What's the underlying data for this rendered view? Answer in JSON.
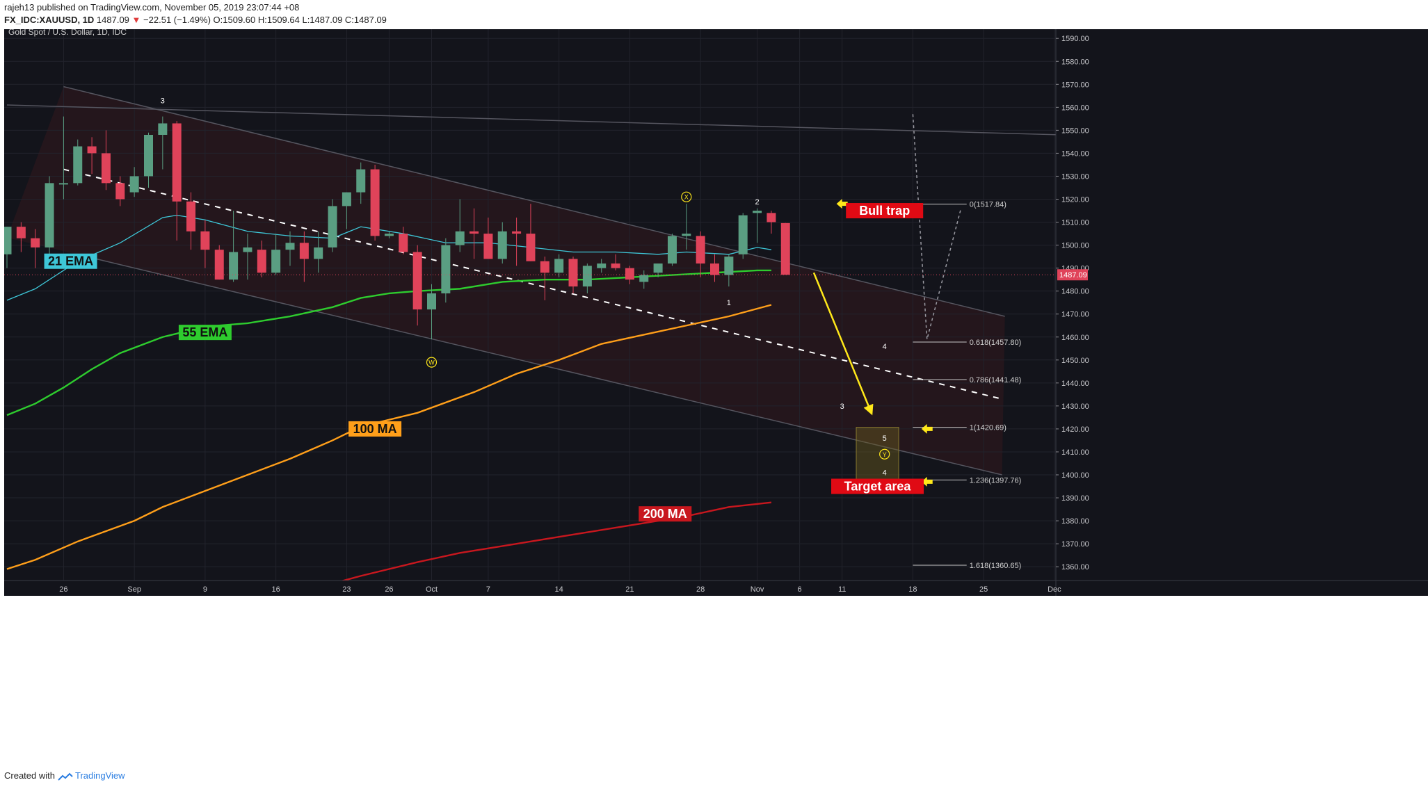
{
  "header": {
    "author": "rajeh13",
    "published_text": "published on TradingView.com, November 05, 2019 23:07:44 +08",
    "symbol": "FX_IDC:XAUUSD, 1D",
    "last": "1487.09",
    "change": "−22.51 (−1.49%)",
    "ohlc": "O:1509.60 H:1509.64 L:1487.09 C:1487.09"
  },
  "footer": {
    "created_with": "Created with",
    "brand": "TradingView"
  },
  "colors": {
    "background": "#13141b",
    "up": "#5a9e82",
    "down": "#e0435a",
    "ema21": "#3ec7d8",
    "ema55": "#2ecc2e",
    "ma100": "#ff9f1a",
    "ma200": "#c8171e",
    "annotation": "#ffe81a",
    "label_red": "#e00a14"
  },
  "chart_data": {
    "type": "candlestick",
    "title": "Gold Spot / U.S. Dollar, 1D, IDC",
    "yaxis": {
      "range": [
        1354,
        1594
      ],
      "ticks": [
        1360,
        1370,
        1380,
        1390,
        1400,
        1410,
        1420,
        1430,
        1440,
        1450,
        1460,
        1470,
        1480,
        1490,
        1500,
        1510,
        1520,
        1530,
        1540,
        1550,
        1560,
        1570,
        1580,
        1590
      ],
      "last_price_label": "1487.09"
    },
    "xaxis": {
      "ticks": [
        {
          "day": 4,
          "label": "26"
        },
        {
          "day": 9,
          "label": "Sep"
        },
        {
          "day": 14,
          "label": "9"
        },
        {
          "day": 19,
          "label": "16"
        },
        {
          "day": 24,
          "label": "23"
        },
        {
          "day": 27,
          "label": "26"
        },
        {
          "day": 30,
          "label": "Oct"
        },
        {
          "day": 34,
          "label": "7"
        },
        {
          "day": 39,
          "label": "14"
        },
        {
          "day": 44,
          "label": "21"
        },
        {
          "day": 49,
          "label": "28"
        },
        {
          "day": 53,
          "label": "Nov"
        },
        {
          "day": 56,
          "label": "6"
        },
        {
          "day": 59,
          "label": "11"
        },
        {
          "day": 64,
          "label": "18"
        },
        {
          "day": 69,
          "label": "25"
        },
        {
          "day": 74,
          "label": "Dec"
        }
      ]
    },
    "candles": [
      {
        "o": 1496,
        "h": 1508,
        "l": 1490,
        "c": 1508
      },
      {
        "o": 1508,
        "h": 1510,
        "l": 1497,
        "c": 1503
      },
      {
        "o": 1503,
        "h": 1507,
        "l": 1490,
        "c": 1499
      },
      {
        "o": 1499,
        "h": 1530,
        "l": 1495,
        "c": 1527
      },
      {
        "o": 1527,
        "h": 1556,
        "l": 1520,
        "c": 1527
      },
      {
        "o": 1527,
        "h": 1546,
        "l": 1526,
        "c": 1543
      },
      {
        "o": 1543,
        "h": 1547,
        "l": 1531,
        "c": 1540
      },
      {
        "o": 1540,
        "h": 1550,
        "l": 1524,
        "c": 1527
      },
      {
        "o": 1527,
        "h": 1530,
        "l": 1517,
        "c": 1520
      },
      {
        "o": 1523,
        "h": 1534,
        "l": 1521,
        "c": 1530
      },
      {
        "o": 1530,
        "h": 1549,
        "l": 1525,
        "c": 1548
      },
      {
        "o": 1548,
        "h": 1556,
        "l": 1533,
        "c": 1553
      },
      {
        "o": 1553,
        "h": 1554,
        "l": 1502,
        "c": 1519
      },
      {
        "o": 1519,
        "h": 1523,
        "l": 1498,
        "c": 1506
      },
      {
        "o": 1506,
        "h": 1511,
        "l": 1490,
        "c": 1498
      },
      {
        "o": 1498,
        "h": 1500,
        "l": 1485,
        "c": 1485
      },
      {
        "o": 1485,
        "h": 1515,
        "l": 1484,
        "c": 1497
      },
      {
        "o": 1497,
        "h": 1505,
        "l": 1485,
        "c": 1499
      },
      {
        "o": 1498,
        "h": 1502,
        "l": 1486,
        "c": 1488
      },
      {
        "o": 1488,
        "h": 1505,
        "l": 1487,
        "c": 1498
      },
      {
        "o": 1498,
        "h": 1506,
        "l": 1491,
        "c": 1501
      },
      {
        "o": 1501,
        "h": 1506,
        "l": 1484,
        "c": 1494
      },
      {
        "o": 1494,
        "h": 1506,
        "l": 1488,
        "c": 1499
      },
      {
        "o": 1499,
        "h": 1520,
        "l": 1497,
        "c": 1517
      },
      {
        "o": 1517,
        "h": 1523,
        "l": 1507,
        "c": 1523
      },
      {
        "o": 1523,
        "h": 1536,
        "l": 1518,
        "c": 1533
      },
      {
        "o": 1533,
        "h": 1535,
        "l": 1502,
        "c": 1504
      },
      {
        "o": 1504,
        "h": 1506,
        "l": 1503,
        "c": 1505
      },
      {
        "o": 1505,
        "h": 1508,
        "l": 1496,
        "c": 1497
      },
      {
        "o": 1497,
        "h": 1500,
        "l": 1465,
        "c": 1472
      },
      {
        "o": 1472,
        "h": 1483,
        "l": 1459,
        "c": 1479
      },
      {
        "o": 1479,
        "h": 1503,
        "l": 1475,
        "c": 1500
      },
      {
        "o": 1500,
        "h": 1520,
        "l": 1497,
        "c": 1506
      },
      {
        "o": 1506,
        "h": 1516,
        "l": 1494,
        "c": 1505
      },
      {
        "o": 1505,
        "h": 1512,
        "l": 1494,
        "c": 1494
      },
      {
        "o": 1494,
        "h": 1510,
        "l": 1492,
        "c": 1506
      },
      {
        "o": 1506,
        "h": 1512,
        "l": 1491,
        "c": 1505
      },
      {
        "o": 1505,
        "h": 1518,
        "l": 1493,
        "c": 1493
      },
      {
        "o": 1493,
        "h": 1495,
        "l": 1476,
        "c": 1488
      },
      {
        "o": 1488,
        "h": 1496,
        "l": 1486,
        "c": 1494
      },
      {
        "o": 1494,
        "h": 1495,
        "l": 1479,
        "c": 1482
      },
      {
        "o": 1482,
        "h": 1492,
        "l": 1479,
        "c": 1491
      },
      {
        "o": 1490,
        "h": 1494,
        "l": 1488,
        "c": 1492
      },
      {
        "o": 1492,
        "h": 1496,
        "l": 1489,
        "c": 1490
      },
      {
        "o": 1490,
        "h": 1491,
        "l": 1483,
        "c": 1485
      },
      {
        "o": 1484,
        "h": 1489,
        "l": 1481,
        "c": 1487
      },
      {
        "o": 1488,
        "h": 1492,
        "l": 1486,
        "c": 1492
      },
      {
        "o": 1492,
        "h": 1505,
        "l": 1491,
        "c": 1504
      },
      {
        "o": 1504,
        "h": 1518,
        "l": 1498,
        "c": 1505
      },
      {
        "o": 1504,
        "h": 1506,
        "l": 1486,
        "c": 1492
      },
      {
        "o": 1492,
        "h": 1496,
        "l": 1484,
        "c": 1487
      },
      {
        "o": 1487,
        "h": 1496,
        "l": 1482,
        "c": 1495
      },
      {
        "o": 1496,
        "h": 1514,
        "l": 1494,
        "c": 1513
      },
      {
        "o": 1514,
        "h": 1516,
        "l": 1501,
        "c": 1515
      },
      {
        "o": 1514,
        "h": 1515,
        "l": 1505,
        "c": 1510
      },
      {
        "o": 1509.6,
        "h": 1509.64,
        "l": 1487.09,
        "c": 1487.09
      }
    ],
    "series": [
      {
        "name": "21 EMA",
        "points": [
          [
            0,
            1476
          ],
          [
            2,
            1481
          ],
          [
            5,
            1493
          ],
          [
            8,
            1501
          ],
          [
            11,
            1512
          ],
          [
            12,
            1513
          ],
          [
            14,
            1511
          ],
          [
            17,
            1506
          ],
          [
            20,
            1504
          ],
          [
            23,
            1503
          ],
          [
            25,
            1508
          ],
          [
            28,
            1505
          ],
          [
            31,
            1501
          ],
          [
            34,
            1501
          ],
          [
            37,
            1499
          ],
          [
            40,
            1497
          ],
          [
            43,
            1497
          ],
          [
            46,
            1496
          ],
          [
            48,
            1497
          ],
          [
            51,
            1496
          ],
          [
            53,
            1499
          ],
          [
            54,
            1498
          ]
        ]
      },
      {
        "name": "55 EMA",
        "points": [
          [
            0,
            1426
          ],
          [
            2,
            1431
          ],
          [
            4,
            1438
          ],
          [
            6,
            1446
          ],
          [
            8,
            1453
          ],
          [
            11,
            1460
          ],
          [
            13,
            1463
          ],
          [
            15,
            1465
          ],
          [
            17,
            1466
          ],
          [
            20,
            1469
          ],
          [
            23,
            1473
          ],
          [
            25,
            1477
          ],
          [
            27,
            1479
          ],
          [
            29,
            1480
          ],
          [
            32,
            1481
          ],
          [
            35,
            1484
          ],
          [
            38,
            1485
          ],
          [
            41,
            1485
          ],
          [
            44,
            1486
          ],
          [
            47,
            1487
          ],
          [
            50,
            1488
          ],
          [
            53,
            1489
          ],
          [
            54,
            1489
          ]
        ]
      },
      {
        "name": "100 MA",
        "points": [
          [
            0,
            1359
          ],
          [
            2,
            1363
          ],
          [
            5,
            1371
          ],
          [
            9,
            1380
          ],
          [
            11,
            1386
          ],
          [
            14,
            1393
          ],
          [
            17,
            1400
          ],
          [
            20,
            1407
          ],
          [
            23,
            1415
          ],
          [
            25,
            1421
          ],
          [
            29,
            1427
          ],
          [
            33,
            1436
          ],
          [
            36,
            1444
          ],
          [
            39,
            1450
          ],
          [
            42,
            1457
          ],
          [
            45,
            1461
          ],
          [
            48,
            1465
          ],
          [
            51,
            1469
          ],
          [
            54,
            1474
          ]
        ]
      },
      {
        "name": "200 MA",
        "points": [
          [
            22,
            1351
          ],
          [
            25,
            1356
          ],
          [
            29,
            1362
          ],
          [
            32,
            1366
          ],
          [
            36,
            1370
          ],
          [
            39,
            1373
          ],
          [
            42,
            1376
          ],
          [
            45,
            1379
          ],
          [
            48,
            1382
          ],
          [
            51,
            1386
          ],
          [
            54,
            1388
          ]
        ]
      }
    ],
    "series_labels": [
      {
        "name": "21 EMA",
        "day": 4.5,
        "price": 1493
      },
      {
        "name": "55 EMA",
        "day": 14,
        "price": 1462
      },
      {
        "name": "100 MA",
        "day": 26,
        "price": 1420
      },
      {
        "name": "200 MA",
        "day": 46.5,
        "price": 1383
      }
    ],
    "channel_lines": [
      {
        "from": [
          4,
          1569
        ],
        "to": [
          70.5,
          1469
        ],
        "style": "solid",
        "color": "#55555f"
      },
      {
        "from": [
          6.3,
          1494
        ],
        "to": [
          70.3,
          1400
        ],
        "style": "solid",
        "color": "#55555f"
      },
      {
        "from": [
          0,
          1561
        ],
        "to": [
          74.5,
          1548
        ],
        "style": "solid",
        "color": "#55555f"
      },
      {
        "from": [
          4,
          1533
        ],
        "to": [
          70.3,
          1433
        ],
        "style": "dashed",
        "color": "#ffffff"
      }
    ],
    "forecast_path": {
      "points": [
        [
          64,
          1557
        ],
        [
          65,
          1459
        ],
        [
          67.4,
          1516
        ]
      ],
      "style": "dotted"
    },
    "fibonacci": [
      {
        "label": "0(1517.84)",
        "price": 1517.84
      },
      {
        "label": "0.618(1457.80)",
        "price": 1457.8
      },
      {
        "label": "0.786(1441.48)",
        "price": 1441.48
      },
      {
        "label": "1(1420.69)",
        "price": 1420.69
      },
      {
        "label": "1.236(1397.76)",
        "price": 1397.76
      },
      {
        "label": "1.618(1360.65)",
        "price": 1360.65
      }
    ],
    "wave_labels": [
      {
        "text": "3",
        "day": 11,
        "price": 1563
      },
      {
        "text": "X",
        "day": 48,
        "price": 1521,
        "circled": true
      },
      {
        "text": "2",
        "day": 53,
        "price": 1519
      },
      {
        "text": "1",
        "day": 51,
        "price": 1475
      },
      {
        "text": "W",
        "day": 30,
        "price": 1449,
        "circled": true
      },
      {
        "text": "4",
        "day": 62,
        "price": 1456
      },
      {
        "text": "3",
        "day": 59,
        "price": 1430
      },
      {
        "text": "5",
        "day": 62,
        "price": 1416
      },
      {
        "text": "Y",
        "day": 62,
        "price": 1409,
        "circled": true
      },
      {
        "text": "4",
        "day": 62,
        "price": 1401
      }
    ],
    "callouts": [
      {
        "text": "Bull trap",
        "day": 62,
        "price": 1515
      },
      {
        "text": "Target area",
        "day": 61.5,
        "price": 1395
      }
    ],
    "target_box": {
      "day_from": 60,
      "day_to": 63,
      "price_from": 1397.76,
      "price_to": 1420.69
    },
    "projection_arrow": {
      "from": [
        57,
        1488
      ],
      "to": [
        61,
        1428
      ]
    },
    "pointer_arrows": [
      {
        "day": 59,
        "price": 1518
      },
      {
        "day": 65,
        "price": 1420
      },
      {
        "day": 65,
        "price": 1397
      }
    ]
  }
}
